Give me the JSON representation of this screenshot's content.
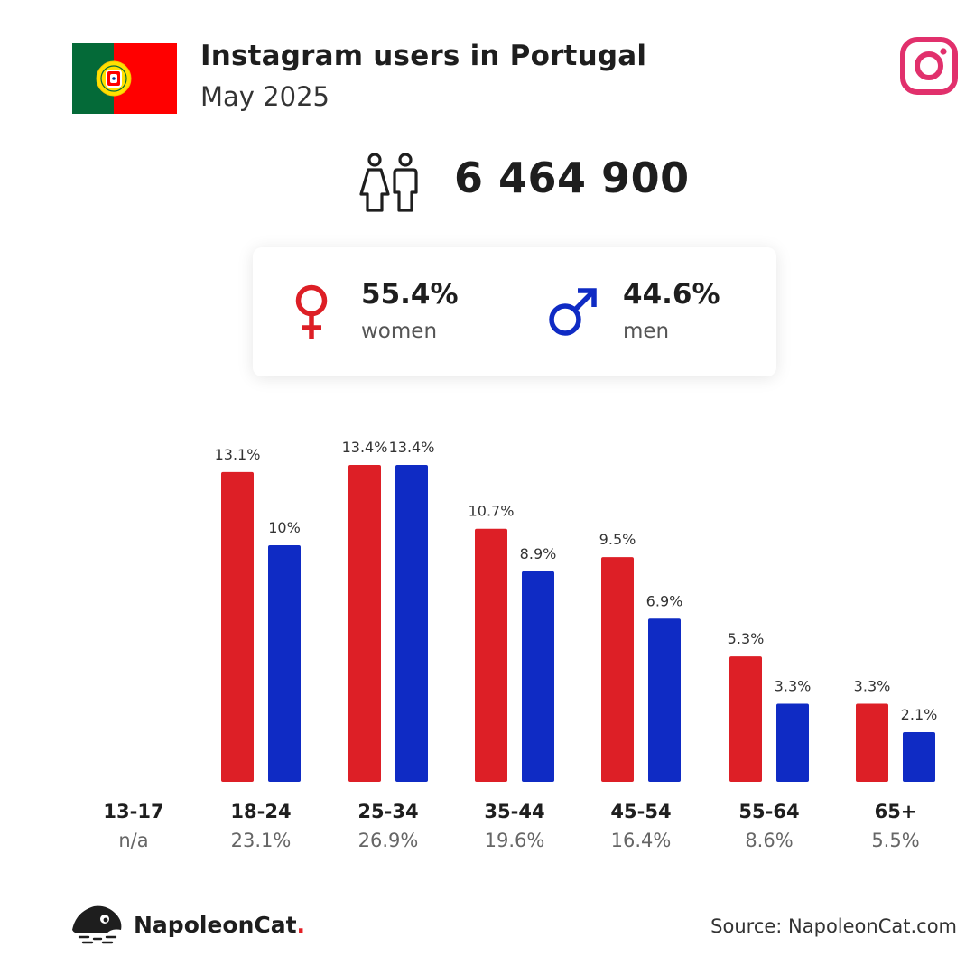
{
  "header": {
    "title": "Instagram users in Portugal",
    "subtitle": "May 2025",
    "flag_icon": "portugal-flag",
    "platform_icon": "instagram-icon"
  },
  "total": {
    "value": "6 464 900",
    "icon": "people-icon"
  },
  "gender": {
    "women": {
      "pct": "55.4%",
      "label": "women",
      "color": "#dd1f26",
      "icon": "female-symbol-icon"
    },
    "men": {
      "pct": "44.6%",
      "label": "men",
      "color": "#0f2bc4",
      "icon": "male-symbol-icon"
    }
  },
  "chart_data": {
    "type": "bar",
    "categories": [
      "13-17",
      "18-24",
      "25-34",
      "35-44",
      "45-54",
      "55-64",
      "65+"
    ],
    "category_totals": [
      "n/a",
      "23.1%",
      "26.9%",
      "19.6%",
      "16.4%",
      "8.6%",
      "5.5%"
    ],
    "series": [
      {
        "color": "#dd1f26",
        "values": [
          null,
          13.1,
          13.4,
          10.7,
          9.5,
          5.3,
          3.3
        ],
        "labels": [
          "",
          "13.1%",
          "13.4%",
          "10.7%",
          "9.5%",
          "5.3%",
          "3.3%"
        ]
      },
      {
        "color": "#0f2bc4",
        "values": [
          null,
          10,
          13.4,
          8.9,
          6.9,
          3.3,
          2.1
        ],
        "labels": [
          "",
          "10%",
          "13.4%",
          "8.9%",
          "6.9%",
          "3.3%",
          "2.1%"
        ]
      }
    ],
    "ylim": [
      0,
      13.4
    ],
    "grid": false
  },
  "footer": {
    "brand": "NapoleonCat",
    "brand_dot": ".",
    "logo_icon": "napoleoncat-logo-icon",
    "source": "Source: NapoleonCat.com"
  }
}
